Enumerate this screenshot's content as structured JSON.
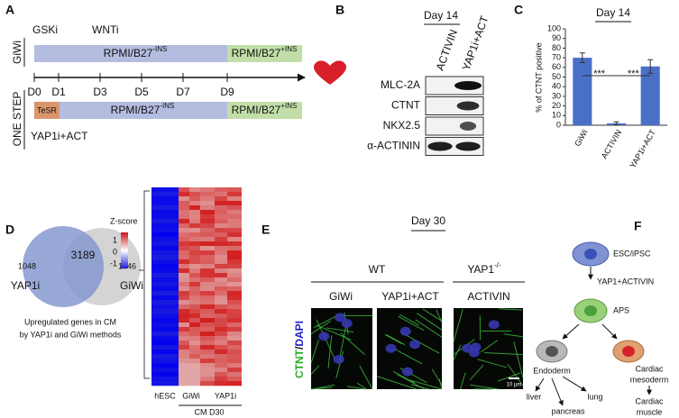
{
  "panel_a": {
    "label": "A",
    "protocol_1": "GiWi",
    "gski": "GSKi",
    "wnti": "WNTi",
    "medium_1": "RPMI/B27",
    "medium_1_sup": "-INS",
    "medium_2": "RPMI/B27",
    "medium_2_sup": "+INS",
    "days": [
      "D0",
      "D1",
      "D3",
      "D5",
      "D7",
      "D9"
    ],
    "protocol_2": "ONE STEP",
    "tesr": "TeSR",
    "medium_3": "RPMI/B27",
    "medium_3_sup": "-INS",
    "medium_4": "RPMI/B27",
    "medium_4_sup": "+INS",
    "treatment": "YAP1i+ACT"
  },
  "panel_b": {
    "label": "B",
    "title": "Day 14",
    "columns": [
      "ACTIVIN",
      "YAP1i+ACT"
    ],
    "rows": [
      "MLC-2A",
      "CTNT",
      "NKX2.5",
      "α-ACTININ"
    ]
  },
  "panel_c": {
    "label": "C"
  },
  "chart_data": {
    "type": "bar",
    "title": "Day 14",
    "y_label": "% of CTNT positive",
    "categories": [
      "GiWi",
      "ACTIVIN",
      "YAP1i+ACT"
    ],
    "values": [
      70,
      2,
      61
    ],
    "errors": [
      5,
      1.5,
      7
    ],
    "color": "#4a6fc7",
    "ylim": [
      0,
      100
    ],
    "yticks": [
      0,
      10,
      20,
      30,
      40,
      50,
      60,
      70,
      80,
      90,
      100
    ],
    "annotations": [
      "***",
      "***"
    ]
  },
  "panel_d": {
    "label": "D",
    "overlap": "3189",
    "left_only": "1048",
    "right_only": "1046",
    "left_set": "YAP1i",
    "right_set": "GiWi",
    "caption_1": "Upregulated genes in CM",
    "caption_2": "by YAP1i and GiWi methods",
    "legend_title": "Z-score",
    "legend_ticks": [
      "1",
      "0",
      "-1"
    ],
    "heatmap_columns": [
      "hESC",
      "GiWi",
      "YAP1i"
    ],
    "heatmap_group": "CM D30"
  },
  "panel_e": {
    "label": "E",
    "title": "Day 30",
    "group_1": "WT",
    "group_2": "YAP1",
    "group_2_sup": "-/-",
    "columns": [
      "GiWi",
      "YAP1i+ACT",
      "ACTIVIN"
    ],
    "stain_1": "CTNT",
    "stain_sep": "/",
    "stain_2": "DAPI",
    "scale": "10 µm"
  },
  "panel_f": {
    "label": "F",
    "start": "ESC/iPSC",
    "treatment": "YAP1+ACTIVIN",
    "aps": "APS",
    "endoderm": "Endoderm",
    "mesoderm_1": "Cardiac",
    "mesoderm_2": "mesoderm",
    "liver": "liver",
    "pancreas": "pancreas",
    "lung": "lung",
    "muscle_1": "Cardiac",
    "muscle_2": "muscle"
  }
}
